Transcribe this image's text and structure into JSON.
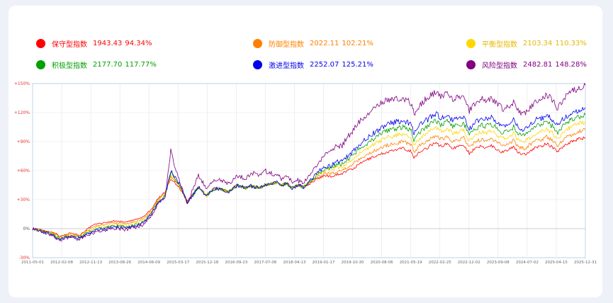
{
  "legend": [
    {
      "name": "保守型指数",
      "value": "1943.43",
      "change": "94.34%",
      "color": "#ff0000"
    },
    {
      "name": "防御型指数",
      "value": "2022.11",
      "change": "102.21%",
      "color": "#ff8000"
    },
    {
      "name": "平衡型指数",
      "value": "2103.34",
      "change": "110.33%",
      "color": "#ffd700"
    },
    {
      "name": "积极型指数",
      "value": "2177.70",
      "change": "117.77%",
      "color": "#00a000"
    },
    {
      "name": "激进型指数",
      "value": "2252.07",
      "change": "125.21%",
      "color": "#0000ee"
    },
    {
      "name": "风险型指数",
      "value": "2482.81",
      "change": "148.28%",
      "color": "#800080"
    }
  ],
  "chart_data": {
    "type": "line",
    "ylim": [
      -30,
      150
    ],
    "yticks": [
      "+150%",
      "+120%",
      "+90%",
      "+60%",
      "+30%",
      "0%",
      "-30%"
    ],
    "ytick_values": [
      150,
      120,
      90,
      60,
      30,
      0,
      -30
    ],
    "xtick_labels": [
      "2011-05-01",
      "2012-02-08",
      "2012-11-13",
      "2013-08-26",
      "2014-06-09",
      "2015-03-17",
      "2015-12-18",
      "2016-09-23",
      "2017-07-06",
      "2018-04-13",
      "2019-01-17",
      "2019-10-30",
      "2020-08-06",
      "2021-05-19",
      "2022-02-25",
      "2022-12-02",
      "2023-09-08",
      "2024-07-02",
      "2025-04-15",
      "2025-12-31"
    ],
    "grid": true,
    "legend_position": "top",
    "series": [
      {
        "name": "保守型指数",
        "color": "#ff0000",
        "x": [
          0,
          1.5,
          3,
          4,
          5,
          7,
          8.5,
          9.5,
          10.5,
          11.5,
          13,
          14.5,
          17,
          19,
          20,
          21.5,
          22.5,
          24,
          25,
          26.5,
          28,
          30,
          31.5,
          32.5,
          33.5,
          35.5,
          37,
          38.5,
          39.5,
          41,
          42,
          43,
          44,
          45,
          46,
          47,
          48,
          49,
          50,
          51,
          52,
          53,
          54,
          55,
          56,
          57,
          58,
          59,
          60,
          62,
          64,
          67,
          68.5,
          69,
          70,
          71.5,
          72,
          73,
          74,
          75,
          76,
          77,
          78,
          79,
          80,
          81,
          82,
          83,
          84,
          85,
          86,
          87,
          88,
          89,
          90,
          91,
          92,
          93,
          94,
          95,
          96,
          97,
          97.4,
          98,
          99,
          100
        ],
        "y": [
          0,
          -1,
          -3,
          -4,
          -8,
          -4,
          -7,
          -2,
          2,
          5,
          6,
          8,
          7,
          10,
          12,
          20,
          30,
          38,
          52,
          43,
          28,
          43,
          34,
          40,
          42,
          38,
          45,
          42,
          44,
          42,
          45,
          46,
          48,
          45,
          47,
          42,
          45,
          43,
          46,
          50,
          53,
          55,
          54,
          56,
          57,
          60,
          62,
          66,
          70,
          75,
          79,
          83,
          80,
          73,
          79,
          84,
          87,
          88,
          85,
          88,
          83,
          85,
          87,
          78,
          82,
          85,
          84,
          86,
          82,
          79,
          82,
          84,
          78,
          77,
          80,
          84,
          85,
          88,
          84,
          80,
          85,
          89,
          90,
          91,
          93,
          94
        ]
      },
      {
        "name": "防御型指数",
        "color": "#ff8000",
        "x": [
          0,
          1.5,
          3,
          4,
          5,
          7,
          8.5,
          9.5,
          10.5,
          11.5,
          13,
          14.5,
          17,
          19,
          20,
          21.5,
          22.5,
          24,
          25,
          26.5,
          28,
          30,
          31.5,
          32.5,
          33.5,
          35.5,
          37,
          38.5,
          39.5,
          41,
          42,
          43,
          44,
          45,
          46,
          47,
          48,
          49,
          50,
          51,
          52,
          53,
          54,
          55,
          56,
          57,
          58,
          59,
          60,
          62,
          64,
          67,
          68.5,
          69,
          70,
          71.5,
          72,
          73,
          74,
          75,
          76,
          77,
          78,
          79,
          80,
          81,
          82,
          83,
          84,
          85,
          86,
          87,
          88,
          89,
          90,
          91,
          92,
          93,
          94,
          95,
          96,
          97,
          97.4,
          98,
          99,
          100
        ],
        "y": [
          0,
          -1.5,
          -3.5,
          -5,
          -9,
          -5,
          -8,
          -3,
          0,
          3,
          4,
          6,
          5,
          8,
          10,
          18,
          28,
          37,
          54,
          44,
          28,
          43,
          34,
          40,
          42,
          38,
          45,
          42,
          44,
          42,
          45,
          46,
          48,
          45,
          47,
          42,
          45,
          43,
          47,
          51,
          55,
          57,
          57,
          59,
          60,
          64,
          67,
          71,
          75,
          81,
          86,
          90,
          87,
          79,
          86,
          91,
          94,
          96,
          92,
          96,
          90,
          92,
          94,
          84,
          89,
          92,
          91,
          93,
          89,
          86,
          88,
          91,
          84,
          83,
          87,
          91,
          92,
          95,
          91,
          86,
          92,
          96,
          97,
          98,
          101,
          102
        ]
      },
      {
        "name": "平衡型指数",
        "color": "#ffd700",
        "x": [
          0,
          1.5,
          3,
          4,
          5,
          7,
          8.5,
          9.5,
          10.5,
          11.5,
          13,
          14.5,
          17,
          19,
          20,
          21.5,
          22.5,
          24,
          25,
          26.5,
          28,
          30,
          31.5,
          32.5,
          33.5,
          35.5,
          37,
          38.5,
          39.5,
          41,
          42,
          43,
          44,
          45,
          46,
          47,
          48,
          49,
          50,
          51,
          52,
          53,
          54,
          55,
          56,
          57,
          58,
          59,
          60,
          62,
          64,
          67,
          68.5,
          69,
          70,
          71.5,
          72,
          73,
          74,
          75,
          76,
          77,
          78,
          79,
          80,
          81,
          82,
          83,
          84,
          85,
          86,
          87,
          88,
          89,
          90,
          91,
          92,
          93,
          94,
          95,
          96,
          97,
          97.4,
          98,
          99,
          100
        ],
        "y": [
          0,
          -2,
          -4,
          -6,
          -9.5,
          -6,
          -8.5,
          -4,
          -1.5,
          1.5,
          2.5,
          4.5,
          3.5,
          6.5,
          8.5,
          17,
          27,
          36,
          56,
          45,
          27,
          43,
          34,
          40,
          42,
          38,
          45,
          42,
          44,
          42,
          45,
          46,
          48,
          45,
          47,
          42,
          45,
          43,
          48,
          52,
          57,
          60,
          60,
          63,
          64,
          68,
          72,
          77,
          81,
          88,
          94,
          98,
          94,
          86,
          93,
          99,
          102,
          104,
          100,
          104,
          98,
          100,
          102,
          91,
          96,
          100,
          99,
          101,
          97,
          93,
          95,
          98,
          91,
          90,
          94,
          99,
          100,
          103,
          99,
          93,
          100,
          104,
          105,
          106,
          109,
          110
        ]
      },
      {
        "name": "积极型指数",
        "color": "#00a000",
        "x": [
          0,
          1.5,
          3,
          4,
          5,
          7,
          8.5,
          9.5,
          10.5,
          11.5,
          13,
          14.5,
          17,
          19,
          20,
          21.5,
          22.5,
          24,
          25,
          26.5,
          28,
          30,
          31.5,
          32.5,
          33.5,
          35.5,
          37,
          38.5,
          39.5,
          41,
          42,
          43,
          44,
          45,
          46,
          47,
          48,
          49,
          50,
          51,
          52,
          53,
          54,
          55,
          56,
          57,
          58,
          59,
          60,
          62,
          64,
          67,
          68.5,
          69,
          70,
          71.5,
          72,
          73,
          74,
          75,
          76,
          77,
          78,
          79,
          80,
          81,
          82,
          83,
          84,
          85,
          86,
          87,
          88,
          89,
          90,
          91,
          92,
          93,
          94,
          95,
          96,
          97,
          97.4,
          98,
          99,
          100
        ],
        "y": [
          0,
          -2.5,
          -4.5,
          -7,
          -10,
          -7,
          -9,
          -5,
          -3,
          0,
          1,
          3,
          2,
          5,
          7,
          16,
          26,
          35,
          58,
          46,
          27,
          43,
          34,
          40,
          42,
          38,
          45,
          42,
          44,
          42,
          45,
          46,
          48,
          45,
          47,
          42,
          45,
          43,
          48.5,
          53,
          58,
          62,
          63,
          66,
          67,
          72,
          76,
          82,
          86,
          94,
          101,
          105,
          101,
          92,
          100,
          106,
          109,
          111,
          107,
          111,
          105,
          107,
          109,
          97,
          102,
          107,
          106,
          108,
          104,
          99,
          101,
          105,
          97,
          96,
          101,
          106,
          107,
          110,
          106,
          99,
          107,
          111,
          112,
          113,
          116,
          117.8
        ]
      },
      {
        "name": "激进型指数",
        "color": "#0000ee",
        "x": [
          0,
          1.5,
          3,
          4,
          5,
          7,
          8.5,
          9.5,
          10.5,
          11.5,
          13,
          14.5,
          17,
          19,
          20,
          21.5,
          22.5,
          24,
          25,
          26.5,
          28,
          30,
          31.5,
          32.5,
          33.5,
          35.5,
          37,
          38.5,
          39.5,
          41,
          42,
          43,
          44,
          45,
          46,
          47,
          48,
          49,
          50,
          51,
          52,
          53,
          54,
          55,
          56,
          57,
          58,
          59,
          60,
          62,
          64,
          67,
          68.5,
          69,
          70,
          71.5,
          72,
          73,
          74,
          75,
          76,
          77,
          78,
          79,
          80,
          81,
          82,
          83,
          84,
          85,
          86,
          87,
          88,
          89,
          90,
          91,
          92,
          93,
          94,
          95,
          96,
          97,
          97.4,
          98,
          99,
          100
        ],
        "y": [
          0,
          -3,
          -5,
          -8,
          -11,
          -8,
          -10,
          -6,
          -4.5,
          -1.5,
          -0.5,
          1.5,
          0.5,
          3.5,
          5.5,
          15,
          25,
          34,
          60,
          47,
          26,
          43,
          34,
          40,
          42,
          38,
          45,
          42,
          44,
          42,
          45,
          46,
          48,
          45,
          47,
          42,
          45,
          43,
          49,
          54,
          60,
          64,
          65,
          69,
          70,
          75,
          80,
          86,
          91,
          100,
          108,
          112,
          108,
          98,
          107,
          113,
          116,
          119,
          114,
          118,
          112,
          114,
          116,
          103,
          109,
          114,
          113,
          115,
          111,
          106,
          108,
          112,
          103,
          102,
          107,
          113,
          114,
          117,
          113,
          106,
          114,
          118,
          119,
          120,
          123,
          125.2
        ]
      },
      {
        "name": "风险型指数",
        "color": "#800080",
        "x": [
          0,
          1.5,
          3,
          4,
          5,
          7,
          8.5,
          9.5,
          10.5,
          11.5,
          13,
          14.5,
          17,
          19,
          20,
          21.5,
          22.5,
          24,
          25,
          26.5,
          28,
          30,
          31.5,
          32.5,
          33.5,
          35.5,
          37,
          38.5,
          39.5,
          41,
          42,
          43,
          44,
          45,
          46,
          47,
          48,
          49,
          50,
          51,
          52,
          53,
          54,
          55,
          56,
          57,
          58,
          59,
          60,
          62,
          64,
          67,
          68.5,
          69,
          70,
          71.5,
          72,
          73,
          74,
          75,
          76,
          77,
          78,
          79,
          80,
          81,
          82,
          83,
          84,
          85,
          86,
          87,
          88,
          89,
          90,
          91,
          92,
          93,
          94,
          95,
          96,
          97,
          97.4,
          98,
          99,
          100
        ],
        "y": [
          0,
          -3,
          -6,
          -9,
          -12,
          -9,
          -11,
          -7,
          -6,
          -3,
          -2,
          0,
          -1,
          2,
          4,
          14,
          24,
          33,
          80,
          50,
          26,
          55,
          42,
          48,
          52,
          46,
          55,
          52,
          58,
          56,
          60,
          57,
          56,
          52,
          55,
          48,
          50,
          46,
          55,
          62,
          70,
          76,
          80,
          85,
          86,
          95,
          102,
          110,
          115,
          125,
          133,
          135,
          130,
          118,
          128,
          136,
          138,
          141,
          136,
          140,
          134,
          135,
          137,
          122,
          128,
          134,
          133,
          135,
          130,
          124,
          126,
          130,
          120,
          119,
          125,
          132,
          134,
          139,
          133,
          124,
          134,
          140,
          141,
          143,
          146,
          148.3
        ]
      }
    ]
  }
}
